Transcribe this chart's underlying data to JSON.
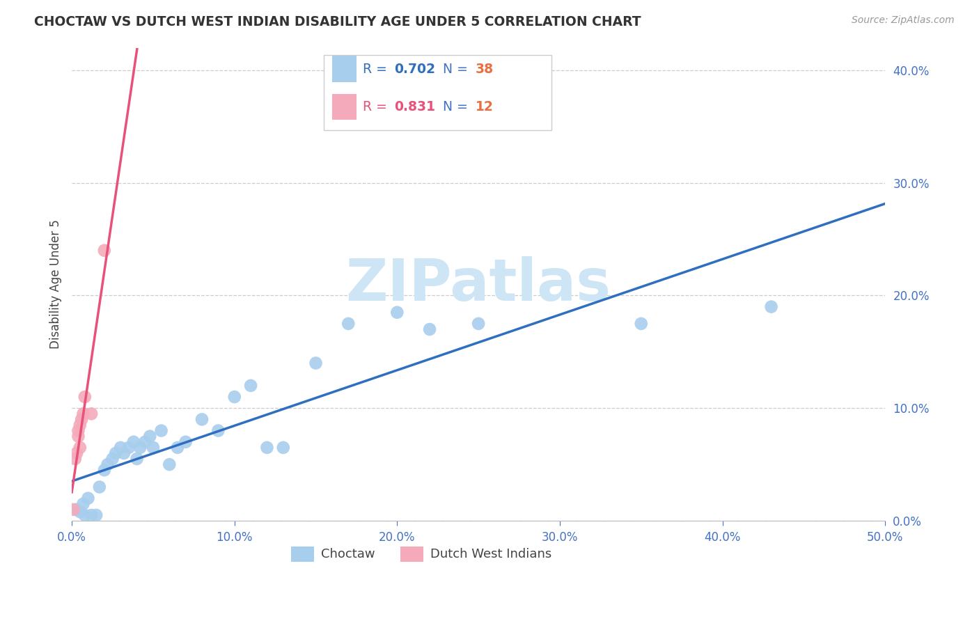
{
  "title": "CHOCTAW VS DUTCH WEST INDIAN DISABILITY AGE UNDER 5 CORRELATION CHART",
  "source": "Source: ZipAtlas.com",
  "ylabel": "Disability Age Under 5",
  "xlim": [
    0.0,
    0.5
  ],
  "ylim": [
    0.0,
    0.42
  ],
  "choctaw_r": 0.702,
  "choctaw_n": 38,
  "dutch_r": 0.831,
  "dutch_n": 12,
  "choctaw_scatter_color": "#A8CEED",
  "dutch_scatter_color": "#F4AABB",
  "choctaw_line_color": "#2E6FBF",
  "dutch_line_color": "#E8517A",
  "axis_tick_color": "#4472C4",
  "background_color": "#ffffff",
  "watermark_color": "#cde5f5",
  "choctaw_x": [
    0.003,
    0.005,
    0.007,
    0.008,
    0.01,
    0.012,
    0.015,
    0.017,
    0.02,
    0.022,
    0.025,
    0.027,
    0.03,
    0.032,
    0.035,
    0.038,
    0.04,
    0.042,
    0.045,
    0.048,
    0.05,
    0.055,
    0.06,
    0.065,
    0.07,
    0.08,
    0.09,
    0.1,
    0.11,
    0.12,
    0.13,
    0.15,
    0.17,
    0.2,
    0.22,
    0.25,
    0.35,
    0.43
  ],
  "choctaw_y": [
    0.01,
    0.008,
    0.015,
    0.005,
    0.02,
    0.005,
    0.005,
    0.03,
    0.045,
    0.05,
    0.055,
    0.06,
    0.065,
    0.06,
    0.065,
    0.07,
    0.055,
    0.065,
    0.07,
    0.075,
    0.065,
    0.08,
    0.05,
    0.065,
    0.07,
    0.09,
    0.08,
    0.11,
    0.12,
    0.065,
    0.065,
    0.14,
    0.175,
    0.185,
    0.17,
    0.175,
    0.175,
    0.19
  ],
  "dutch_x": [
    0.001,
    0.002,
    0.003,
    0.004,
    0.004,
    0.005,
    0.005,
    0.006,
    0.007,
    0.008,
    0.012,
    0.02
  ],
  "dutch_y": [
    0.01,
    0.055,
    0.06,
    0.075,
    0.08,
    0.065,
    0.085,
    0.09,
    0.095,
    0.11,
    0.095,
    0.24
  ]
}
